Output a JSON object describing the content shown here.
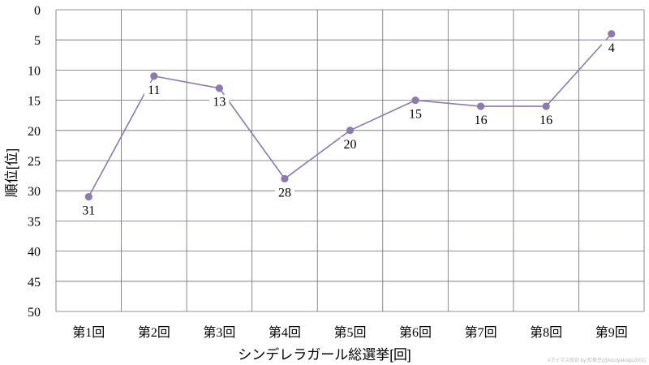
{
  "chart_data": {
    "type": "line",
    "categories": [
      "第1回",
      "第2回",
      "第3回",
      "第4回",
      "第5回",
      "第6回",
      "第7回",
      "第8回",
      "第9回"
    ],
    "series": [
      {
        "values": [
          31,
          11,
          13,
          28,
          20,
          15,
          16,
          16,
          4
        ],
        "color": "#8b7aac",
        "marker": "circle",
        "data_labels": [
          "31",
          "11",
          "13",
          "28",
          "20",
          "15",
          "16",
          "16",
          "4"
        ]
      }
    ],
    "title": "",
    "xlabel": "シンデレラガール総選挙[回]",
    "ylabel": "順位[位]",
    "ylim": [
      0,
      50
    ],
    "y_inverted": true,
    "y_ticks": [
      0,
      5,
      10,
      15,
      20,
      25,
      30,
      35,
      40,
      45,
      50
    ],
    "grid": true,
    "grid_color": "#6d6d78",
    "watermark": "#アイマス統計 by 紅茶豆(@koutyakogu2001)"
  }
}
